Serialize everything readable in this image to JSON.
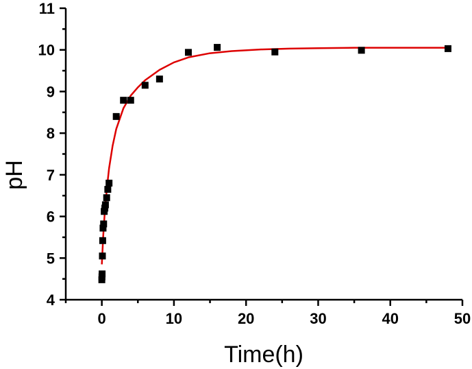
{
  "chart_data": {
    "type": "scatter",
    "xlabel": "Time(h)",
    "ylabel": "pH",
    "xlim": [
      -5,
      50
    ],
    "ylim": [
      4,
      11
    ],
    "x_ticks": [
      0,
      10,
      20,
      30,
      40,
      50
    ],
    "y_ticks": [
      4,
      5,
      6,
      7,
      8,
      9,
      10,
      11
    ],
    "grid": false,
    "legend": "none",
    "series": [
      {
        "type": "scatter",
        "marker": "square",
        "color": "#000000",
        "points": [
          {
            "x": 0.0,
            "y": 4.48
          },
          {
            "x": 0.02,
            "y": 4.55
          },
          {
            "x": 0.04,
            "y": 4.62
          },
          {
            "x": 0.08,
            "y": 5.05
          },
          {
            "x": 0.12,
            "y": 5.42
          },
          {
            "x": 0.17,
            "y": 5.72
          },
          {
            "x": 0.25,
            "y": 5.82
          },
          {
            "x": 0.33,
            "y": 6.12
          },
          {
            "x": 0.42,
            "y": 6.2
          },
          {
            "x": 0.5,
            "y": 6.28
          },
          {
            "x": 0.67,
            "y": 6.45
          },
          {
            "x": 0.83,
            "y": 6.65
          },
          {
            "x": 1.0,
            "y": 6.8
          },
          {
            "x": 2.0,
            "y": 8.4
          },
          {
            "x": 3.0,
            "y": 8.79
          },
          {
            "x": 4.0,
            "y": 8.79
          },
          {
            "x": 6.0,
            "y": 9.15
          },
          {
            "x": 8.0,
            "y": 9.3
          },
          {
            "x": 12.0,
            "y": 9.94
          },
          {
            "x": 16.0,
            "y": 10.06
          },
          {
            "x": 24.0,
            "y": 9.95
          },
          {
            "x": 36.0,
            "y": 9.99
          },
          {
            "x": 48.0,
            "y": 10.03
          }
        ]
      },
      {
        "type": "line",
        "color": "#dd0000",
        "points": [
          {
            "x": 0.0,
            "y": 4.85
          },
          {
            "x": 0.1,
            "y": 5.2
          },
          {
            "x": 0.2,
            "y": 5.55
          },
          {
            "x": 0.35,
            "y": 5.95
          },
          {
            "x": 0.5,
            "y": 6.3
          },
          {
            "x": 0.75,
            "y": 6.75
          },
          {
            "x": 1.0,
            "y": 7.15
          },
          {
            "x": 1.5,
            "y": 7.7
          },
          {
            "x": 2.0,
            "y": 8.1
          },
          {
            "x": 3.0,
            "y": 8.6
          },
          {
            "x": 4.0,
            "y": 8.9
          },
          {
            "x": 5.0,
            "y": 9.1
          },
          {
            "x": 6.0,
            "y": 9.27
          },
          {
            "x": 8.0,
            "y": 9.52
          },
          {
            "x": 10.0,
            "y": 9.7
          },
          {
            "x": 12.0,
            "y": 9.82
          },
          {
            "x": 15.0,
            "y": 9.92
          },
          {
            "x": 18.0,
            "y": 9.97
          },
          {
            "x": 22.0,
            "y": 10.01
          },
          {
            "x": 26.0,
            "y": 10.03
          },
          {
            "x": 30.0,
            "y": 10.04
          },
          {
            "x": 35.0,
            "y": 10.05
          },
          {
            "x": 40.0,
            "y": 10.05
          },
          {
            "x": 45.0,
            "y": 10.05
          },
          {
            "x": 48.0,
            "y": 10.05
          }
        ]
      }
    ]
  }
}
